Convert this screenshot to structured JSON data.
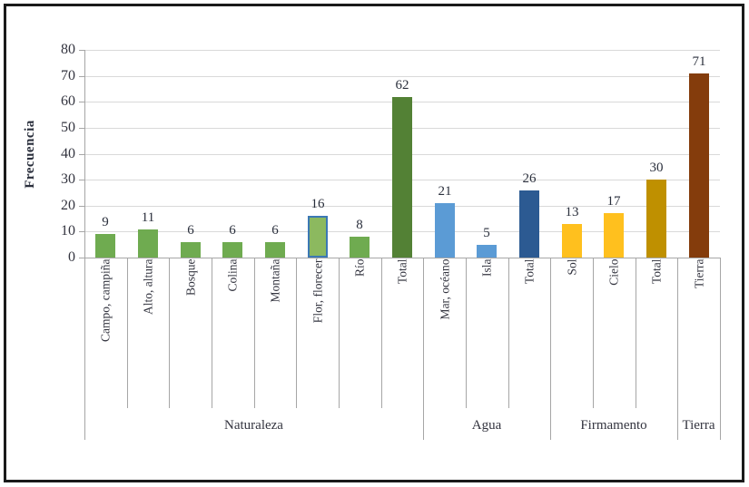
{
  "chart_data": {
    "type": "bar",
    "title": "",
    "xlabel": "",
    "ylabel": "Frecuencia",
    "ylim": [
      0,
      80
    ],
    "y_tick_step": 10,
    "y_ticks": [
      0,
      10,
      20,
      30,
      40,
      50,
      60,
      70,
      80
    ],
    "grid": true,
    "legend": "none",
    "categories": [
      "Campo, campiña",
      "Alto, altura",
      "Bosque",
      "Colina",
      "Montaña",
      "Flor, florecer",
      "Río",
      "Total",
      "Mar, océano",
      "Isla",
      "Total",
      "Sol",
      "Cielo",
      "Total",
      "Tierra"
    ],
    "values": [
      9,
      11,
      6,
      6,
      6,
      16,
      8,
      62,
      21,
      5,
      26,
      13,
      17,
      30,
      71
    ],
    "bars": [
      {
        "label": "Campo, campiña",
        "value": 9,
        "color": "#6fab50"
      },
      {
        "label": "Alto, altura",
        "value": 11,
        "color": "#6fab50"
      },
      {
        "label": "Bosque",
        "value": 6,
        "color": "#6fab50"
      },
      {
        "label": "Colina",
        "value": 6,
        "color": "#6fab50"
      },
      {
        "label": "Montaña",
        "value": 6,
        "color": "#6fab50"
      },
      {
        "label": "Flor, florecer",
        "value": 16,
        "color": "#8cb95f",
        "border": "#3c78b4"
      },
      {
        "label": "Río",
        "value": 8,
        "color": "#6fab50"
      },
      {
        "label": "Total",
        "value": 62,
        "color": "#538135"
      },
      {
        "label": "Mar, océano",
        "value": 21,
        "color": "#5b9bd5"
      },
      {
        "label": "Isla",
        "value": 5,
        "color": "#5b9bd5"
      },
      {
        "label": "Total",
        "value": 26,
        "color": "#2c5a92"
      },
      {
        "label": "Sol",
        "value": 13,
        "color": "#ffc01e"
      },
      {
        "label": "Cielo",
        "value": 17,
        "color": "#ffc01e"
      },
      {
        "label": "Total",
        "value": 30,
        "color": "#bf9000"
      },
      {
        "label": "Tierra",
        "value": 71,
        "color": "#843c0c"
      }
    ],
    "groups": [
      {
        "label": "Naturaleza",
        "span": 8
      },
      {
        "label": "Agua",
        "span": 3
      },
      {
        "label": "Firmamento",
        "span": 3
      },
      {
        "label": "Tierra",
        "span": 1
      }
    ]
  },
  "palette": {
    "green": "#6fab50",
    "light_green": "#8cb95f",
    "dark_green": "#538135",
    "blue": "#5b9bd5",
    "dark_blue": "#2c5a92",
    "yellow": "#ffc01e",
    "gold": "#bf9000",
    "brown": "#843c0c",
    "gridline": "#d9d9d9",
    "axis_line": "#a6a6a6",
    "text": "#33343f",
    "frame_border": "#1a1a1a"
  }
}
